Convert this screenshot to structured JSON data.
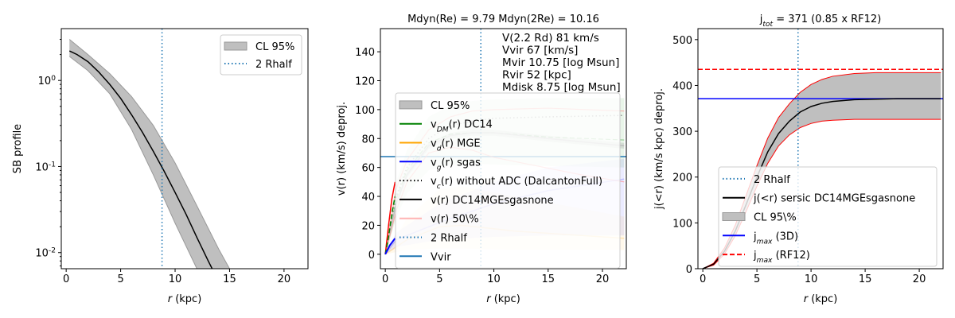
{
  "chart_data": [
    {
      "type": "line",
      "title": "",
      "xlabel": "r (kpc)",
      "ylabel": "SB profile",
      "xlim": [
        -0.45,
        22.2
      ],
      "ylim": [
        0.0065,
        4.0
      ],
      "yscale": "log",
      "xticks": [
        0,
        5,
        10,
        15,
        20
      ],
      "yticks": [
        {
          "v": 1,
          "label": "10^0"
        },
        {
          "v": 0.1,
          "label": "10^-1"
        },
        {
          "v": 0.01,
          "label": "10^-2"
        }
      ],
      "legend_position": "top-right",
      "vlines": [
        {
          "x": 8.8,
          "color": "#1f77b4",
          "style": "dotted",
          "label": "2 Rhalf"
        }
      ],
      "hlines": [],
      "bands": [
        {
          "label": "CL 95%",
          "color": "#bfbfbf",
          "opacity": 1,
          "edge": "#999999",
          "x": [
            0.3,
            2,
            4,
            6,
            8,
            10,
            12,
            14,
            15,
            22
          ],
          "upper": [
            3.0,
            2.0,
            1.2,
            0.65,
            0.3,
            0.11,
            0.035,
            0.011,
            0.0065,
            0.0065
          ],
          "lower": [
            1.9,
            1.3,
            0.7,
            0.27,
            0.08,
            0.022,
            0.0065,
            0.0065,
            0.0065,
            0.0065
          ]
        }
      ],
      "series": [
        {
          "name": "SB",
          "color": "#000000",
          "style": "solid",
          "width": 1.5,
          "x": [
            0.3,
            1,
            2,
            3,
            4,
            5,
            6,
            7,
            8,
            9,
            10,
            11,
            12,
            13,
            13.4
          ],
          "y": [
            2.2,
            2.0,
            1.65,
            1.25,
            0.9,
            0.62,
            0.4,
            0.25,
            0.15,
            0.088,
            0.05,
            0.028,
            0.015,
            0.0082,
            0.0065
          ]
        }
      ],
      "legend": [
        {
          "label": "CL 95%",
          "kind": "patch",
          "color": "#bfbfbf"
        },
        {
          "label": "2 Rhalf",
          "kind": "line",
          "color": "#1f77b4",
          "style": "dotted"
        }
      ]
    },
    {
      "type": "line",
      "title": "Mdyn(Re) = 9.79  Mdyn(2Re) = 10.16",
      "xlabel": "r (kpc)",
      "ylabel": "v(r) (km/s) deproj.",
      "xlim": [
        -0.45,
        22.2
      ],
      "ylim": [
        -10,
        156
      ],
      "yscale": "linear",
      "xticks": [
        0,
        5,
        10,
        15,
        20
      ],
      "yticks": [
        {
          "v": 0,
          "label": "0"
        },
        {
          "v": 20,
          "label": "20"
        },
        {
          "v": 40,
          "label": "40"
        },
        {
          "v": 60,
          "label": "60"
        },
        {
          "v": 80,
          "label": "80"
        },
        {
          "v": 100,
          "label": "100"
        },
        {
          "v": 120,
          "label": "120"
        },
        {
          "v": 140,
          "label": "140"
        }
      ],
      "annotations": [
        "V(2.2 Rd) 81 km/s",
        "Vvir 67 [km/s]",
        "Mvir 10.75 [log Msun]",
        "Rvir 52 [kpc]",
        "Mdisk 8.75 [log Msun]"
      ],
      "legend_position": "lower-center",
      "vlines": [
        {
          "x": 8.8,
          "color": "#1f77b4",
          "style": "dotted",
          "label": "2 Rhalf"
        }
      ],
      "hlines": [
        {
          "y": 67.5,
          "color": "#1f77b4",
          "style": "solid",
          "label": "Vvir"
        }
      ],
      "bands": [
        {
          "label": "DM band",
          "color": "#2ca02c",
          "opacity": 0.1,
          "edge": "none",
          "x": [
            0,
            1,
            2,
            4,
            6,
            8,
            10,
            15,
            22
          ],
          "upper": [
            0,
            50,
            72,
            95,
            103,
            106,
            107,
            108,
            108
          ],
          "lower": [
            0,
            25,
            42,
            58,
            62,
            63,
            62,
            61,
            60
          ]
        },
        {
          "label": "gas band",
          "color": "#0000ff",
          "opacity": 0.08,
          "edge": "none",
          "x": [
            0,
            1,
            5,
            10,
            15,
            22
          ],
          "upper": [
            0,
            15,
            35,
            50,
            60,
            66
          ],
          "lower": [
            0,
            5,
            10,
            12,
            13,
            13
          ]
        },
        {
          "label": "MGE band",
          "color": "#ffa500",
          "opacity": 0.08,
          "edge": "none",
          "x": [
            0,
            2,
            5,
            7,
            12,
            22
          ],
          "upper": [
            0,
            25,
            45,
            47,
            40,
            26
          ],
          "lower": [
            0,
            3,
            4,
            4,
            3,
            3
          ]
        },
        {
          "label": "v band",
          "color": "#808080",
          "opacity": 0.2,
          "edge": "none",
          "x": [
            0,
            1,
            2,
            4,
            6,
            8,
            10,
            15,
            22
          ],
          "upper": [
            0,
            37,
            57,
            77,
            84,
            86,
            86,
            82,
            77
          ],
          "lower": [
            0,
            33,
            53,
            73,
            80,
            82,
            82,
            78,
            73
          ]
        }
      ],
      "series": [
        {
          "name": "v_DM(r) DC14",
          "color": "#008000",
          "style": "dashed",
          "width": 1.2,
          "opacity": 0.35,
          "x": [
            0,
            1,
            2,
            4,
            6,
            8,
            10,
            15,
            22
          ],
          "y": [
            0,
            38,
            58,
            77,
            83,
            84,
            84,
            81,
            79
          ]
        },
        {
          "name": "v_c(r) without ADC",
          "color": "#808080",
          "style": "dotted",
          "width": 1.5,
          "opacity": 0.8,
          "x": [
            0,
            1,
            2,
            4,
            6,
            8,
            10,
            15,
            22
          ],
          "y": [
            0,
            40,
            60,
            80,
            89,
            92,
            94,
            95,
            96
          ]
        },
        {
          "name": "v(r) 50% upper",
          "color": "#ff8080",
          "style": "solid",
          "width": 1.2,
          "opacity": 0.6,
          "x": [
            0,
            1,
            2,
            4,
            6,
            8,
            10,
            15,
            22
          ],
          "y": [
            0,
            45,
            65,
            86,
            95,
            99,
            100,
            101,
            99
          ]
        },
        {
          "name": "v(r) 50% lower",
          "color": "#ff8080",
          "style": "solid",
          "width": 1.2,
          "opacity": 0.6,
          "x": [
            0,
            1,
            2,
            4,
            6,
            8,
            10,
            14,
            18,
            22
          ],
          "y": [
            0,
            30,
            50,
            70,
            74,
            72,
            67,
            61,
            55,
            50
          ]
        },
        {
          "name": "v(r) DC14MGEsgasnone",
          "color": "#bbbbbb",
          "style": "solid",
          "width": 1.5,
          "opacity": 0.9,
          "x": [
            0,
            1,
            2,
            4,
            6,
            8,
            10,
            15,
            22
          ],
          "y": [
            0,
            35,
            55,
            75,
            82,
            84,
            84,
            80,
            75
          ]
        },
        {
          "name": "v_g(r) sgas",
          "color": "#0000ff",
          "style": "solid",
          "width": 1.5,
          "opacity": 0.2,
          "x": [
            0,
            1,
            5,
            10,
            15,
            22
          ],
          "y": [
            0,
            10,
            22,
            35,
            44,
            52
          ]
        },
        {
          "name": "v_d(r) MGE",
          "color": "#ffa500",
          "style": "solid",
          "width": 1.5,
          "opacity": 0.25,
          "x": [
            0,
            2,
            5,
            7,
            12,
            22
          ],
          "y": [
            0,
            10,
            19,
            20,
            16,
            11
          ]
        },
        {
          "name": "inner red",
          "color": "#ff0000",
          "style": "solid",
          "width": 1.5,
          "opacity": 1,
          "x": [
            0,
            0.3,
            0.6,
            0.9
          ],
          "y": [
            0,
            20,
            38,
            50
          ]
        },
        {
          "name": "inner green",
          "color": "#008000",
          "style": "dashed",
          "width": 1.5,
          "opacity": 1,
          "x": [
            0,
            0.3,
            0.6,
            0.9
          ],
          "y": [
            0,
            12,
            28,
            40
          ]
        },
        {
          "name": "inner blue",
          "color": "#0000ff",
          "style": "solid",
          "width": 2,
          "opacity": 1,
          "x": [
            0,
            0.4,
            0.9
          ],
          "y": [
            0,
            6,
            11
          ]
        }
      ],
      "legend": [
        {
          "label": "CL 95%",
          "kind": "patch",
          "color": "#bfbfbf"
        },
        {
          "label": "v_{DM}(r) DC14",
          "kind": "line",
          "color": "#008000",
          "style": "solid"
        },
        {
          "label": "v_{d}(r) MGE",
          "kind": "line",
          "color": "#ffa500",
          "style": "solid"
        },
        {
          "label": "v_{g}(r) sgas",
          "kind": "line",
          "color": "#0000ff",
          "style": "solid"
        },
        {
          "label": "v_{c}(r) without ADC (DalcantonFull)",
          "kind": "line",
          "color": "#000000",
          "style": "dotted"
        },
        {
          "label": "v(r) DC14MGEsgasnone",
          "kind": "line",
          "color": "#000000",
          "style": "solid"
        },
        {
          "label": "v(r) 50\\%",
          "kind": "line",
          "color": "#ffb3b3",
          "style": "solid"
        },
        {
          "label": "2 Rhalf",
          "kind": "line",
          "color": "#1f77b4",
          "style": "dotted"
        },
        {
          "label": "Vvir",
          "kind": "line",
          "color": "#1f77b4",
          "style": "solid"
        }
      ]
    },
    {
      "type": "line",
      "title": "j_{tot} = 371 (0.85 x RF12)",
      "xlabel": "r (kpc)",
      "ylabel": "j(<r) (km/s kpc) deproj.",
      "xlim": [
        -0.45,
        22.2
      ],
      "ylim": [
        0,
        524
      ],
      "yscale": "linear",
      "xticks": [
        0,
        5,
        10,
        15,
        20
      ],
      "yticks": [
        {
          "v": 0,
          "label": "0"
        },
        {
          "v": 100,
          "label": "100"
        },
        {
          "v": 200,
          "label": "200"
        },
        {
          "v": 300,
          "label": "300"
        },
        {
          "v": 400,
          "label": "400"
        },
        {
          "v": 500,
          "label": "500"
        }
      ],
      "legend_position": "lower-right",
      "vlines": [
        {
          "x": 8.8,
          "color": "#1f77b4",
          "style": "dotted",
          "label": "2 Rhalf"
        }
      ],
      "hlines": [
        {
          "y": 371,
          "color": "#0000ff",
          "style": "solid",
          "label": "j_max (3D)"
        },
        {
          "y": 435,
          "color": "#ff0000",
          "style": "dashed",
          "label": "j_max (RF12)"
        }
      ],
      "bands": [
        {
          "label": "CL 95\\%",
          "color": "#bfbfbf",
          "opacity": 1,
          "edge": "#ff0000",
          "x": [
            0,
            1,
            2,
            3,
            4,
            5,
            6,
            7,
            8,
            9,
            10,
            11,
            12,
            14,
            16,
            18,
            22
          ],
          "upper": [
            0,
            12,
            45,
            95,
            160,
            225,
            285,
            330,
            360,
            385,
            402,
            413,
            420,
            426,
            428,
            428,
            428
          ],
          "lower": [
            0,
            8,
            32,
            72,
            125,
            180,
            230,
            268,
            292,
            308,
            317,
            322,
            324,
            326,
            326,
            326,
            326
          ]
        }
      ],
      "series": [
        {
          "name": "j(<r) sersic DC14MGEsgasnone",
          "color": "#000000",
          "style": "solid",
          "width": 1.5,
          "opacity": 1,
          "x": [
            0,
            1,
            2,
            3,
            4,
            5,
            6,
            7,
            8,
            9,
            10,
            11,
            12,
            14,
            16,
            18,
            22
          ],
          "y": [
            0,
            10,
            38,
            82,
            140,
            200,
            255,
            295,
            322,
            342,
            354,
            361,
            365,
            369,
            370,
            371,
            371
          ]
        }
      ],
      "legend": [
        {
          "label": "2 Rhalf",
          "kind": "line",
          "color": "#1f77b4",
          "style": "dotted"
        },
        {
          "label": "j(<r) sersic DC14MGEsgasnone",
          "kind": "line",
          "color": "#000000",
          "style": "solid"
        },
        {
          "label": "CL 95\\%",
          "kind": "patch",
          "color": "#bfbfbf"
        },
        {
          "label": "j_{max} (3D)",
          "kind": "line",
          "color": "#0000ff",
          "style": "solid"
        },
        {
          "label": "j_{max} (RF12)",
          "kind": "line",
          "color": "#ff0000",
          "style": "dashed"
        }
      ]
    }
  ]
}
